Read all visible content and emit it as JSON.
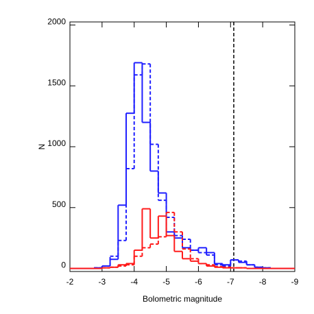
{
  "chart_data": {
    "type": "step-histogram",
    "x_label": "Bolometric magnitude",
    "y_label": "N",
    "bins": [
      -2,
      -2.25,
      -2.5,
      -2.75,
      -3,
      -3.25,
      -3.5,
      -3.75,
      -4,
      -4.25,
      -4.5,
      -4.75,
      -5,
      -5.25,
      -5.5,
      -5.75,
      -6,
      -6.25,
      -6.5,
      -6.75,
      -7,
      -7.25,
      -7.5,
      -7.75,
      -8,
      -8.25,
      -8.5,
      -8.75,
      -9
    ],
    "series": [
      {
        "color": "#1f1fff",
        "dashed": false,
        "values": [
          0,
          0,
          0,
          5,
          20,
          75,
          520,
          1275,
          1690,
          1200,
          800,
          620,
          300,
          250,
          170,
          150,
          170,
          130,
          40,
          30,
          70,
          50,
          30,
          10,
          5,
          0,
          0,
          0
        ]
      },
      {
        "color": "#1f1fff",
        "dashed": true,
        "values": [
          0,
          0,
          0,
          5,
          20,
          100,
          230,
          820,
          1590,
          1680,
          1020,
          560,
          420,
          270,
          240,
          150,
          130,
          110,
          30,
          20,
          70,
          60,
          30,
          10,
          5,
          0,
          0,
          0
        ]
      },
      {
        "color": "#ff1a1a",
        "dashed": false,
        "values": [
          0,
          0,
          0,
          0,
          5,
          10,
          30,
          40,
          150,
          490,
          250,
          430,
          270,
          140,
          80,
          60,
          40,
          20,
          10,
          5,
          5,
          5,
          0,
          0,
          0,
          0,
          0,
          0
        ]
      },
      {
        "color": "#ff1a1a",
        "dashed": true,
        "values": [
          0,
          0,
          0,
          0,
          5,
          10,
          20,
          30,
          100,
          170,
          200,
          260,
          460,
          300,
          160,
          80,
          40,
          30,
          15,
          10,
          5,
          5,
          0,
          0,
          0,
          0,
          0,
          0
        ]
      }
    ],
    "vline": -7.1,
    "xlim": [
      -2,
      -9
    ],
    "xticks": [
      -2,
      -3,
      -4,
      -5,
      -6,
      -7,
      -8,
      -9
    ],
    "ylim": [
      -25,
      2025
    ],
    "yticks": [
      0,
      500,
      1000,
      1500,
      2000
    ]
  }
}
